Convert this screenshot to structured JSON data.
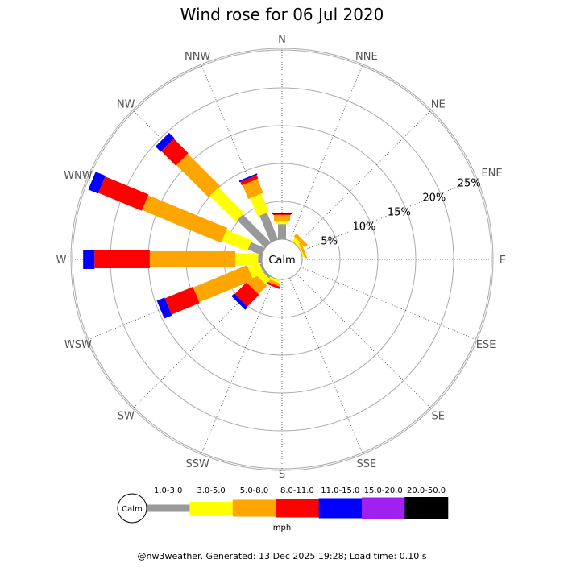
{
  "chart_data": {
    "type": "wind-rose",
    "title": "Wind rose for 06 Jul 2020",
    "center_label": "Calm",
    "directions": [
      "N",
      "NNE",
      "NE",
      "ENE",
      "E",
      "ESE",
      "SE",
      "SSE",
      "S",
      "SSW",
      "SW",
      "WSW",
      "W",
      "WNW",
      "NW",
      "NNW"
    ],
    "radial_ticks": [
      "5%",
      "10%",
      "15%",
      "20%",
      "25%"
    ],
    "radial_tick_values": [
      5,
      10,
      15,
      20,
      25
    ],
    "radial_max": 25,
    "unit": "mph",
    "bins": [
      {
        "label": "1.0-3.0",
        "color": "#999999"
      },
      {
        "label": "3.0-5.0",
        "color": "#ffff00"
      },
      {
        "label": "5.0-8.0",
        "color": "#ffa500"
      },
      {
        "label": "8.0-11.0",
        "color": "#ff0000"
      },
      {
        "label": "11.0-15.0",
        "color": "#0000ff"
      },
      {
        "label": "15.0-20.0",
        "color": "#a020f0"
      },
      {
        "label": "20.0-50.0",
        "color": "#000000"
      }
    ],
    "series_percent_by_direction": {
      "N": [
        2.0,
        0.4,
        0.8,
        0.1,
        0.2,
        0,
        0
      ],
      "NNE": [
        0,
        0,
        0,
        0,
        0,
        0,
        0
      ],
      "NE": [
        0,
        0.6,
        0.5,
        0,
        0,
        0,
        0
      ],
      "ENE": [
        0,
        0.2,
        0.3,
        0,
        0,
        0,
        0
      ],
      "E": [
        0,
        0,
        0,
        0,
        0,
        0,
        0
      ],
      "ESE": [
        0,
        0,
        0,
        0,
        0,
        0,
        0
      ],
      "SE": [
        0,
        0,
        0,
        0,
        0,
        0,
        0
      ],
      "SSE": [
        0,
        0,
        0,
        0,
        0,
        0,
        0
      ],
      "S": [
        0,
        0,
        0,
        0,
        0,
        0,
        0
      ],
      "SSW": [
        0,
        0.4,
        0.4,
        0.3,
        0,
        0,
        0
      ],
      "SW": [
        0.3,
        0.9,
        1.6,
        2.2,
        0.5,
        0,
        0
      ],
      "WSW": [
        0.3,
        1.6,
        7.7,
        4.0,
        1.1,
        0,
        0
      ],
      "W": [
        0.5,
        3.0,
        11.3,
        7.3,
        1.5,
        0,
        0
      ],
      "WNW": [
        2.0,
        3.6,
        11.3,
        6.2,
        1.4,
        0,
        0
      ],
      "NW": [
        5.2,
        4.8,
        6.0,
        2.7,
        1.0,
        0,
        0
      ],
      "NNW": [
        3.8,
        2.6,
        2.0,
        0.5,
        0.2,
        0,
        0
      ]
    }
  },
  "footer": "@nw3weather. Generated: 13 Dec 2025 19:28; Load time: 0.10 s"
}
